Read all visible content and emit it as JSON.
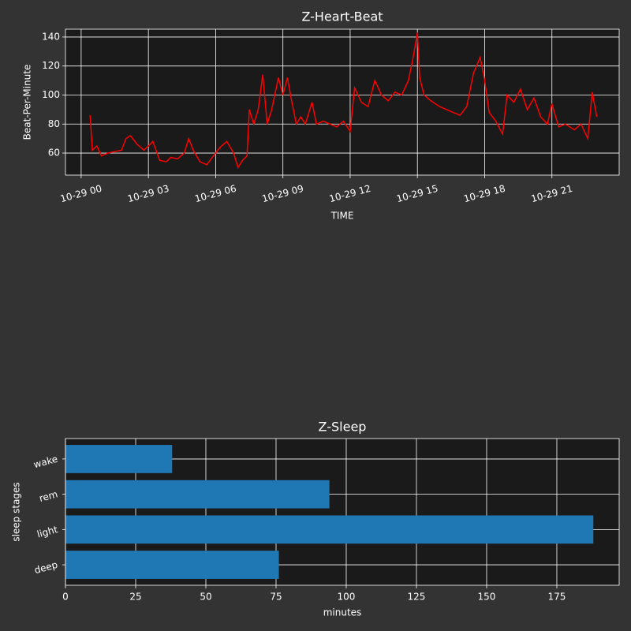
{
  "chart_data": [
    {
      "type": "line",
      "title": "Z-Heart-Beat",
      "xlabel": "TIME",
      "ylabel": "Beat-Per-Minute",
      "color": "#ff0000",
      "grid": true,
      "x": [
        0.4,
        0.5,
        0.7,
        0.9,
        1.2,
        1.5,
        1.8,
        2.0,
        2.2,
        2.5,
        2.8,
        3.0,
        3.2,
        3.5,
        3.8,
        4.0,
        4.3,
        4.6,
        4.8,
        5.0,
        5.3,
        5.6,
        5.9,
        6.2,
        6.5,
        6.8,
        7.0,
        7.2,
        7.4,
        7.5,
        7.7,
        7.9,
        8.1,
        8.3,
        8.5,
        8.8,
        9.0,
        9.2,
        9.4,
        9.6,
        9.8,
        10.0,
        10.3,
        10.5,
        10.8,
        11.1,
        11.4,
        11.7,
        12.0,
        12.2,
        12.5,
        12.8,
        13.1,
        13.4,
        13.7,
        14.0,
        14.3,
        14.6,
        14.8,
        15.0,
        15.1,
        15.3,
        15.6,
        16.0,
        16.3,
        16.6,
        16.9,
        17.2,
        17.5,
        17.8,
        18.0,
        18.2,
        18.5,
        18.8,
        19.0,
        19.3,
        19.6,
        19.9,
        20.2,
        20.5,
        20.8,
        21.0,
        21.3,
        21.6,
        22.0,
        22.3,
        22.6,
        22.8,
        23.0
      ],
      "values": [
        86,
        62,
        65,
        58,
        60,
        61,
        62,
        70,
        72,
        66,
        62,
        65,
        68,
        55,
        54,
        57,
        56,
        60,
        70,
        62,
        54,
        52,
        58,
        64,
        68,
        60,
        50,
        55,
        58,
        90,
        80,
        90,
        114,
        80,
        90,
        112,
        100,
        112,
        95,
        80,
        85,
        80,
        95,
        80,
        82,
        80,
        78,
        82,
        75,
        105,
        95,
        92,
        110,
        100,
        96,
        102,
        100,
        110,
        125,
        143,
        112,
        100,
        96,
        92,
        90,
        88,
        86,
        92,
        115,
        126,
        110,
        88,
        82,
        73,
        100,
        95,
        104,
        90,
        98,
        85,
        80,
        94,
        78,
        80,
        76,
        80,
        70,
        102,
        85
      ],
      "xlim": [
        -0.7,
        24.0
      ],
      "ylim": [
        44.8,
        145.4
      ],
      "xticks": [
        {
          "value": 0,
          "label": "10-29 00"
        },
        {
          "value": 3,
          "label": "10-29 03"
        },
        {
          "value": 6,
          "label": "10-29 06"
        },
        {
          "value": 9,
          "label": "10-29 09"
        },
        {
          "value": 12,
          "label": "10-29 12"
        },
        {
          "value": 15,
          "label": "10-29 15"
        },
        {
          "value": 18,
          "label": "10-29 18"
        },
        {
          "value": 21,
          "label": "10-29 21"
        }
      ],
      "yticks": [
        60,
        80,
        100,
        120,
        140
      ]
    },
    {
      "type": "bar",
      "orientation": "horizontal",
      "title": "Z-Sleep",
      "xlabel": "minutes",
      "ylabel": "sleep stages",
      "color": "#1f77b4",
      "grid": true,
      "categories": [
        "deep",
        "light",
        "rem",
        "wake"
      ],
      "values": [
        76,
        188,
        94,
        38
      ],
      "xlim": [
        0,
        197.2
      ],
      "xticks": [
        0,
        25,
        50,
        75,
        100,
        125,
        150,
        175
      ]
    }
  ]
}
